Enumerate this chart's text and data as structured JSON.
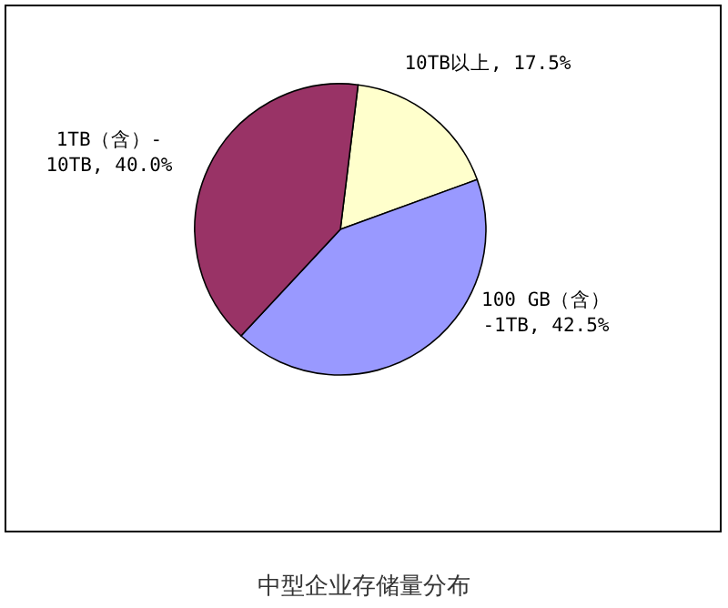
{
  "chart_data": {
    "type": "pie",
    "title": "中型企业存储量分布",
    "categories": [
      "10TB以上",
      "100 GB（含）-1TB",
      "1TB（含）-10TB"
    ],
    "values": [
      17.5,
      42.5,
      40.0
    ],
    "value_labels": [
      "17.5%",
      "42.5%",
      "40.0%"
    ],
    "colors": [
      "#ffffcc",
      "#9999ff",
      "#993366"
    ]
  }
}
